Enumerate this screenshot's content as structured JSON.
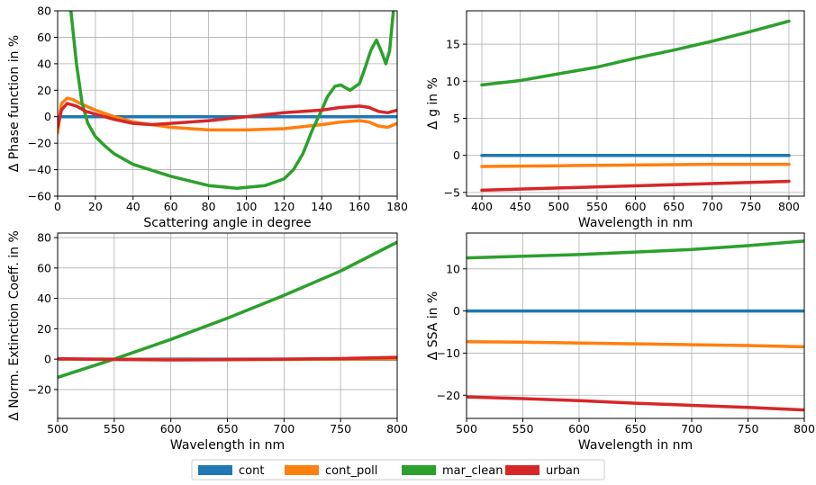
{
  "series_colors": {
    "cont": "#1f77b4",
    "cont_poll": "#ff7f0e",
    "mar_clean": "#2ca02c",
    "urban": "#d62728"
  },
  "legend": {
    "items": [
      "cont",
      "cont_poll",
      "mar_clean",
      "urban"
    ],
    "placement": "bottom-center"
  },
  "chart_data": [
    {
      "type": "line",
      "xlabel": "Scattering angle in degree",
      "ylabel": "Δ Phase function in %",
      "xlim": [
        0,
        180
      ],
      "ylim": [
        -60,
        80
      ],
      "xticks": [
        0,
        20,
        40,
        60,
        80,
        100,
        120,
        140,
        160,
        180
      ],
      "yticks": [
        -60,
        -40,
        -20,
        0,
        20,
        40,
        60,
        80
      ],
      "grid": true,
      "series": [
        {
          "name": "cont",
          "x": [
            0,
            180
          ],
          "y": [
            0,
            0
          ]
        },
        {
          "name": "cont_poll",
          "x": [
            0,
            2,
            5,
            8,
            12,
            20,
            30,
            40,
            60,
            80,
            100,
            120,
            140,
            150,
            160,
            165,
            170,
            175,
            180
          ],
          "y": [
            -12,
            10,
            14,
            13,
            10,
            5,
            0,
            -4,
            -8,
            -10,
            -10,
            -9,
            -6,
            -4,
            -3,
            -4,
            -7,
            -8,
            -5
          ]
        },
        {
          "name": "mar_clean",
          "x": [
            7,
            10,
            13,
            16,
            20,
            25,
            30,
            40,
            60,
            80,
            95,
            110,
            120,
            125,
            130,
            135,
            140,
            143,
            147,
            150,
            155,
            160,
            163,
            166,
            169,
            172,
            174,
            176,
            177,
            178
          ],
          "y": [
            80,
            40,
            10,
            -5,
            -15,
            -22,
            -28,
            -36,
            -45,
            -52,
            -54,
            -52,
            -47,
            -40,
            -28,
            -10,
            5,
            15,
            23,
            24,
            20,
            25,
            37,
            50,
            58,
            48,
            40,
            50,
            65,
            80
          ]
        },
        {
          "name": "urban",
          "x": [
            0,
            2,
            5,
            10,
            15,
            20,
            30,
            40,
            50,
            60,
            80,
            100,
            120,
            140,
            150,
            160,
            165,
            170,
            175,
            180
          ],
          "y": [
            -8,
            5,
            10,
            8,
            4,
            2,
            -2,
            -5,
            -6,
            -5,
            -3,
            0,
            3,
            5,
            7,
            8,
            7,
            4,
            3,
            5
          ]
        }
      ]
    },
    {
      "type": "line",
      "xlabel": "Wavelength in nm",
      "ylabel": "Δ g in %",
      "xlim": [
        380,
        820
      ],
      "ylim": [
        -5.5,
        19.5
      ],
      "xticks": [
        400,
        450,
        500,
        550,
        600,
        650,
        700,
        750,
        800
      ],
      "yticks": [
        -5,
        0,
        5,
        10,
        15
      ],
      "grid": true,
      "series": [
        {
          "name": "cont",
          "x": [
            400,
            800
          ],
          "y": [
            0,
            0
          ]
        },
        {
          "name": "cont_poll",
          "x": [
            400,
            500,
            600,
            700,
            800
          ],
          "y": [
            -1.5,
            -1.4,
            -1.3,
            -1.2,
            -1.2
          ]
        },
        {
          "name": "mar_clean",
          "x": [
            400,
            450,
            500,
            550,
            600,
            650,
            700,
            750,
            800
          ],
          "y": [
            9.5,
            10.1,
            11.0,
            11.9,
            13.1,
            14.2,
            15.4,
            16.7,
            18.1
          ]
        },
        {
          "name": "urban",
          "x": [
            400,
            500,
            600,
            700,
            800
          ],
          "y": [
            -4.7,
            -4.4,
            -4.1,
            -3.8,
            -3.5
          ]
        }
      ]
    },
    {
      "type": "line",
      "xlabel": "Wavelength in nm",
      "ylabel": "Δ Norm. Extinction Coeff. in %",
      "xlim": [
        500,
        800
      ],
      "ylim": [
        -39,
        83
      ],
      "xticks": [
        500,
        550,
        600,
        650,
        700,
        750,
        800
      ],
      "yticks": [
        -20,
        0,
        20,
        40,
        60,
        80
      ],
      "grid": true,
      "series": [
        {
          "name": "cont",
          "x": [
            500,
            800
          ],
          "y": [
            0,
            0
          ]
        },
        {
          "name": "cont_poll",
          "x": [
            500,
            550,
            600,
            700,
            800
          ],
          "y": [
            0,
            0,
            -0.3,
            -0.2,
            0.2
          ]
        },
        {
          "name": "mar_clean",
          "x": [
            500,
            550,
            600,
            650,
            700,
            750,
            800
          ],
          "y": [
            -12,
            0,
            13,
            27,
            42,
            58,
            77
          ]
        },
        {
          "name": "urban",
          "x": [
            500,
            550,
            600,
            650,
            700,
            750,
            800
          ],
          "y": [
            0.3,
            -0.2,
            -0.5,
            -0.3,
            0,
            0.4,
            1.2
          ]
        }
      ]
    },
    {
      "type": "line",
      "xlabel": "Wavelength in nm",
      "ylabel": "Δ SSA in %",
      "xlim": [
        500,
        800
      ],
      "ylim": [
        -25.5,
        18.5
      ],
      "xticks": [
        500,
        550,
        600,
        650,
        700,
        750,
        800
      ],
      "yticks": [
        -20,
        -10,
        0,
        10
      ],
      "grid": true,
      "series": [
        {
          "name": "cont",
          "x": [
            500,
            800
          ],
          "y": [
            0,
            0
          ]
        },
        {
          "name": "cont_poll",
          "x": [
            500,
            550,
            600,
            650,
            700,
            750,
            800
          ],
          "y": [
            -7.3,
            -7.4,
            -7.6,
            -7.8,
            -8.0,
            -8.2,
            -8.5
          ]
        },
        {
          "name": "mar_clean",
          "x": [
            500,
            550,
            600,
            650,
            700,
            750,
            800
          ],
          "y": [
            12.6,
            13.0,
            13.4,
            14.0,
            14.6,
            15.5,
            16.6
          ]
        },
        {
          "name": "urban",
          "x": [
            500,
            550,
            600,
            650,
            700,
            750,
            800
          ],
          "y": [
            -20.4,
            -20.8,
            -21.3,
            -21.9,
            -22.4,
            -22.9,
            -23.5
          ]
        }
      ]
    }
  ]
}
